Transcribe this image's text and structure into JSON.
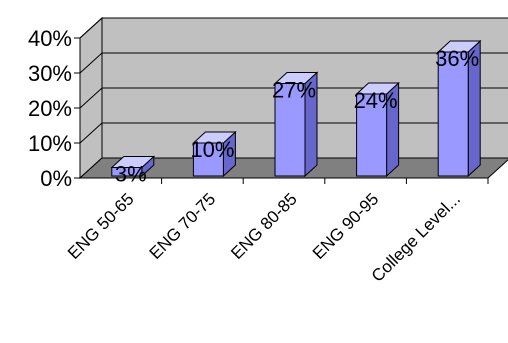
{
  "chart_data": {
    "type": "bar",
    "three_d": true,
    "categories": [
      "ENG 50-65",
      "ENG 70-75",
      "ENG 80-85",
      "ENG 90-95",
      "College Level..."
    ],
    "values": [
      3,
      10,
      27,
      24,
      36
    ],
    "data_labels": [
      "3%",
      "10%",
      "27%",
      "24%",
      "36%"
    ],
    "y_ticks": [
      0,
      10,
      20,
      30,
      40
    ],
    "y_tick_labels": [
      "0%",
      "10%",
      "20%",
      "30%",
      "40%"
    ],
    "ylim": [
      0,
      40
    ],
    "grid": true,
    "legend": "none",
    "title": "",
    "xlabel": "",
    "ylabel": "",
    "colors": {
      "bar_front": "#9999ff",
      "bar_top": "#ccccff",
      "bar_side": "#6666cc",
      "back_wall": "#c0c0c0",
      "floor": "#808080",
      "axis": "#000000"
    }
  }
}
